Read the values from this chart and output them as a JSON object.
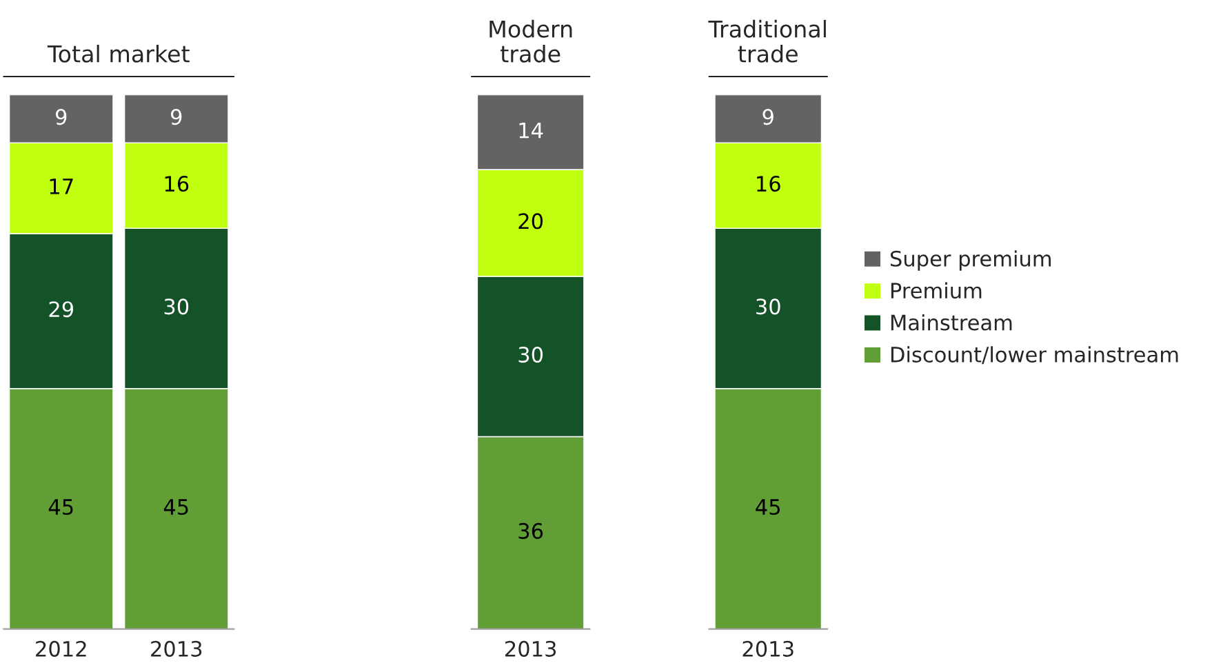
{
  "chart_data": [
    {
      "type": "bar",
      "stacked": true,
      "title": "Total market",
      "categories": [
        "2012",
        "2013"
      ],
      "ylim": [
        0,
        100
      ],
      "tick_labels": "x",
      "data_labels": true,
      "grid": false,
      "legend": false,
      "series": [
        {
          "color": "#629e36",
          "values": [
            45,
            45
          ]
        },
        {
          "color": "#135327",
          "values": [
            29,
            30
          ]
        },
        {
          "color": "#bfff0f",
          "values": [
            17,
            16
          ]
        },
        {
          "color": "#636363",
          "values": [
            9,
            9
          ]
        }
      ]
    },
    {
      "type": "bar",
      "stacked": true,
      "title": "Modern\ntrade",
      "categories": [
        "2013"
      ],
      "ylim": [
        0,
        100
      ],
      "tick_labels": "x",
      "data_labels": true,
      "grid": false,
      "legend": false,
      "series": [
        {
          "color": "#629e36",
          "values": [
            36
          ]
        },
        {
          "color": "#135327",
          "values": [
            30
          ]
        },
        {
          "color": "#bfff0f",
          "values": [
            20
          ]
        },
        {
          "color": "#636363",
          "values": [
            14
          ]
        }
      ]
    },
    {
      "type": "bar",
      "stacked": true,
      "title": "Traditional\ntrade",
      "categories": [
        "2013"
      ],
      "ylim": [
        0,
        100
      ],
      "tick_labels": "x",
      "data_labels": true,
      "grid": false,
      "legend": "right",
      "series": [
        {
          "name": "Discount/lower mainstream",
          "color": "#629e36",
          "values": [
            45
          ]
        },
        {
          "name": "Mainstream",
          "color": "#135327",
          "values": [
            30
          ]
        },
        {
          "name": "Premium",
          "color": "#bfff0f",
          "values": [
            16
          ]
        },
        {
          "name": "Super premium",
          "color": "#636363",
          "values": [
            9
          ]
        }
      ]
    }
  ]
}
